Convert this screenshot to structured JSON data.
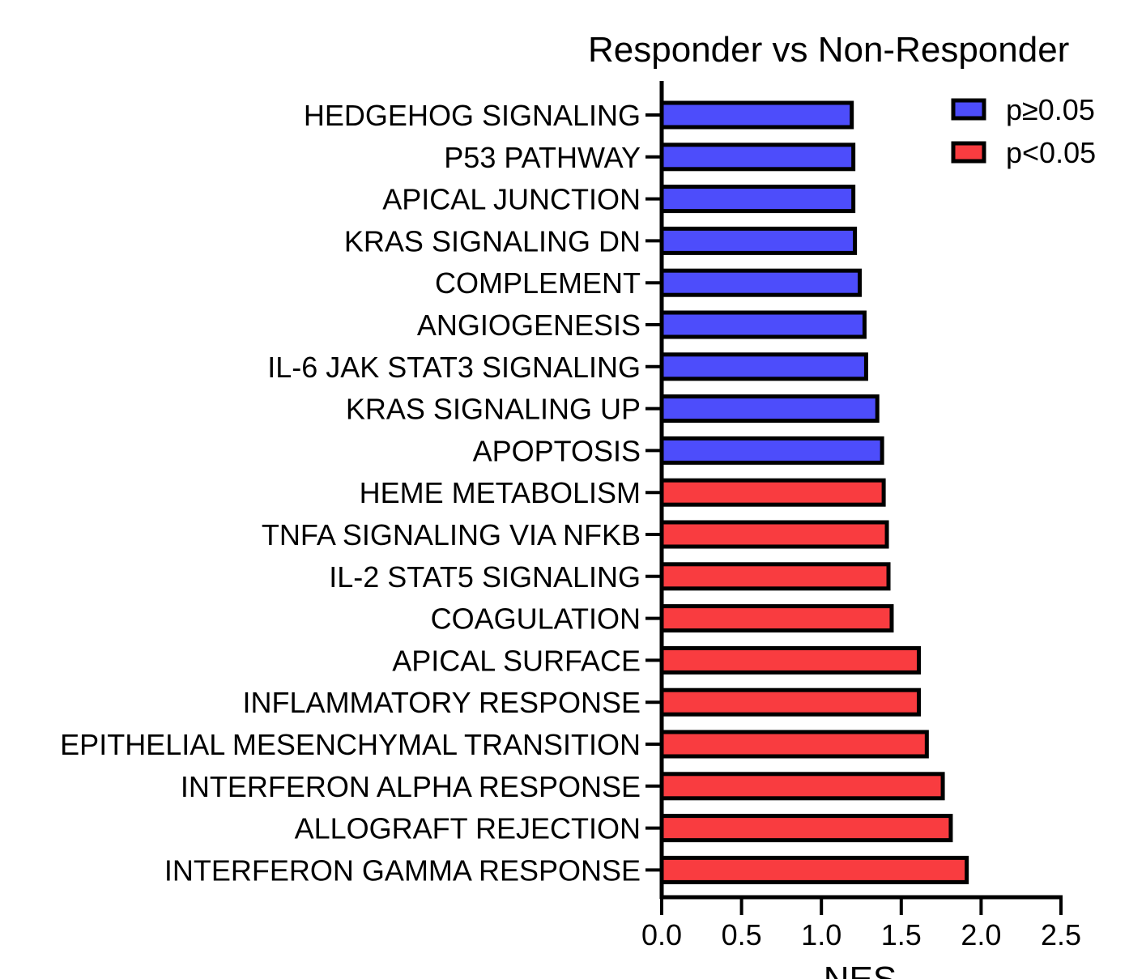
{
  "chart_data": {
    "type": "bar",
    "orientation": "horizontal",
    "title": "Responder vs Non-Responder",
    "xlabel": "NES",
    "ylabel": "",
    "xlim": [
      0,
      2.5
    ],
    "xticks": [
      "0.0",
      "0.5",
      "1.0",
      "1.5",
      "2.0",
      "2.5"
    ],
    "grid": false,
    "legend_position": "top-right",
    "legend": [
      {
        "label": "p≥0.05",
        "group": "ns",
        "color": "#4d4dfb"
      },
      {
        "label": "p<0.05",
        "group": "sig",
        "color": "#f93c40"
      }
    ],
    "colors": {
      "ns": "#4d4dfb",
      "sig": "#f93c40",
      "outline": "#000000"
    },
    "categories": [
      "HEDGEHOG SIGNALING",
      "P53 PATHWAY",
      "APICAL JUNCTION",
      "KRAS SIGNALING DN",
      "COMPLEMENT",
      "ANGIOGENESIS",
      "IL-6 JAK STAT3 SIGNALING",
      "KRAS SIGNALING UP",
      "APOPTOSIS",
      "HEME METABOLISM",
      "TNFA SIGNALING VIA NFKB",
      "IL-2 STAT5 SIGNALING",
      "COAGULATION",
      "APICAL SURFACE",
      "INFLAMMATORY RESPONSE",
      "EPITHELIAL MESENCHYMAL TRANSITION",
      "INTERFERON ALPHA RESPONSE",
      "ALLOGRAFT REJECTION",
      "INTERFERON GAMMA RESPONSE"
    ],
    "values": [
      1.19,
      1.2,
      1.2,
      1.21,
      1.24,
      1.27,
      1.28,
      1.35,
      1.38,
      1.39,
      1.41,
      1.42,
      1.44,
      1.61,
      1.61,
      1.66,
      1.76,
      1.81,
      1.91
    ],
    "groups": [
      "ns",
      "ns",
      "ns",
      "ns",
      "ns",
      "ns",
      "ns",
      "ns",
      "ns",
      "sig",
      "sig",
      "sig",
      "sig",
      "sig",
      "sig",
      "sig",
      "sig",
      "sig",
      "sig"
    ]
  }
}
